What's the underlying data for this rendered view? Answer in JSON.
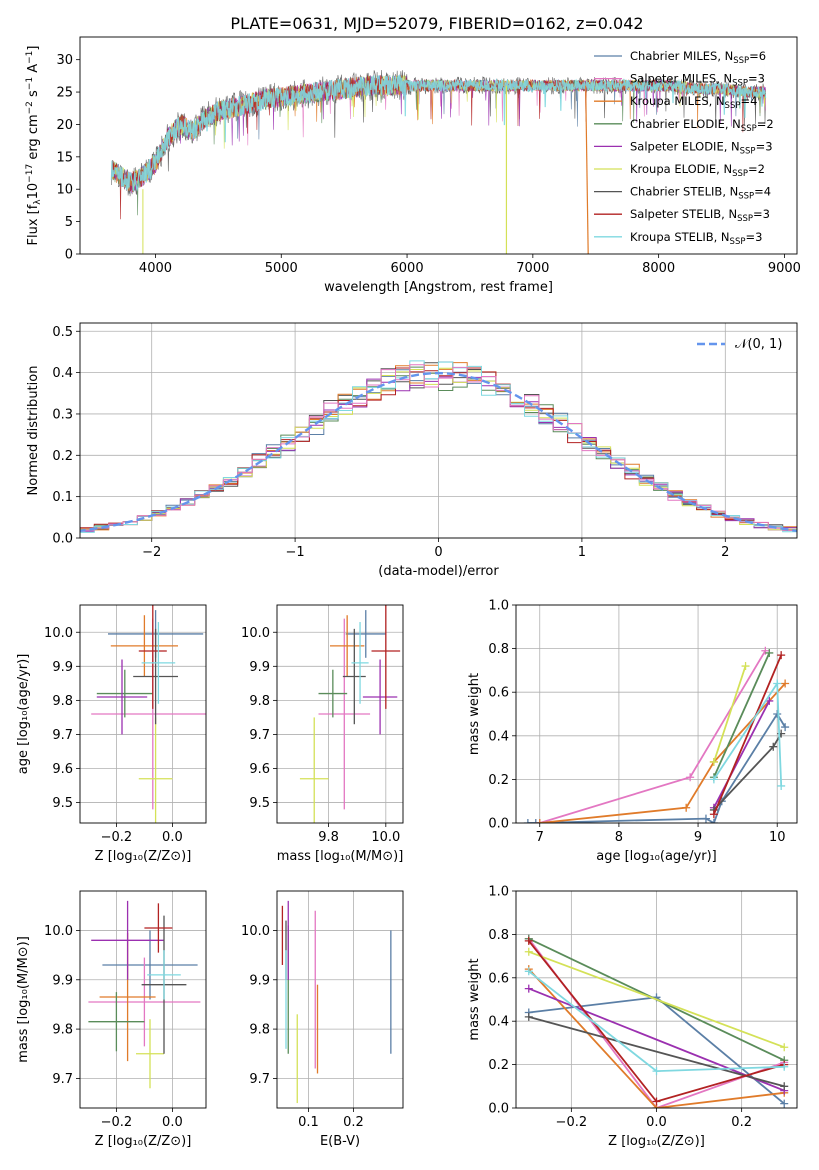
{
  "figure_title": "PLATE=0631, MJD=52079, FIBERID=0162, z=0.042",
  "colors": [
    "#5b7fa6",
    "#e377c2",
    "#e07b2a",
    "#5a8c5a",
    "#9b30b0",
    "#d4e157",
    "#555555",
    "#b22222",
    "#7fd8e0"
  ],
  "legend_entries": [
    {
      "name": "Chabrier MILES, N",
      "sub": "SSP",
      "tail": "=6",
      "color": "#5b7fa6"
    },
    {
      "name": "Salpeter MILES, N",
      "sub": "SSP",
      "tail": "=3",
      "color": "#e377c2"
    },
    {
      "name": "Kroupa MILES, N",
      "sub": "SSP",
      "tail": "=4",
      "color": "#e07b2a"
    },
    {
      "name": "Chabrier ELODIE, N",
      "sub": "SSP",
      "tail": "=2",
      "color": "#5a8c5a"
    },
    {
      "name": "Salpeter ELODIE, N",
      "sub": "SSP",
      "tail": "=3",
      "color": "#9b30b0"
    },
    {
      "name": "Kroupa ELODIE, N",
      "sub": "SSP",
      "tail": "=2",
      "color": "#d4e157"
    },
    {
      "name": "Chabrier STELIB, N",
      "sub": "SSP",
      "tail": "=4",
      "color": "#555555"
    },
    {
      "name": "Salpeter STELIB, N",
      "sub": "SSP",
      "tail": "=3",
      "color": "#b22222"
    },
    {
      "name": "Kroupa STELIB, N",
      "sub": "SSP",
      "tail": "=3",
      "color": "#7fd8e0"
    }
  ],
  "chart_data": [
    {
      "id": "spectrum",
      "type": "line",
      "xlabel": "wavelength [Angstrom, rest frame]",
      "ylabel": "Flux [f",
      "ylabel_parts": [
        "Flux [f",
        "λ",
        "10",
        "−17",
        " erg cm",
        "−2",
        " s",
        "−1",
        " A",
        "−1",
        "]"
      ],
      "xlim": [
        3400,
        9100
      ],
      "ylim": [
        0,
        33.5
      ],
      "xticks": [
        4000,
        5000,
        6000,
        7000,
        8000,
        9000
      ],
      "yticks": [
        0,
        5,
        10,
        15,
        20,
        25,
        30
      ],
      "continuum_x": [
        3650,
        3800,
        3900,
        4000,
        4100,
        4200,
        4300,
        4400,
        4500,
        4700,
        4900,
        5100,
        5300,
        5500,
        5700,
        5900,
        6100,
        6300,
        6500,
        6700,
        6900,
        7100,
        7300,
        7500,
        7700,
        7900,
        8100,
        8300,
        8500,
        8700,
        8850
      ],
      "continuum_y": [
        13,
        11,
        12,
        14,
        18,
        20,
        19,
        21,
        22,
        23,
        24,
        24.5,
        25,
        25.5,
        26,
        26,
        26,
        26,
        26,
        26,
        26,
        26,
        26,
        26,
        26,
        26,
        26,
        25.5,
        25.5,
        25,
        25
      ]
    },
    {
      "id": "residuals",
      "type": "line",
      "xlabel": "(data-model)/error",
      "ylabel": "Normed distribution",
      "xlim": [
        -2.5,
        2.5
      ],
      "ylim": [
        0,
        0.52
      ],
      "xticks": [
        -2,
        -1,
        0,
        1,
        2
      ],
      "yticks": [
        0.0,
        0.1,
        0.2,
        0.3,
        0.4,
        0.5
      ],
      "legend": "𝒩(0, 1)",
      "gaussian": {
        "mean": 0,
        "sigma": 1
      }
    },
    {
      "id": "age-vs-Z",
      "type": "scatter",
      "xlabel": "Z [log₁₀(Z/Z⊙)]",
      "ylabel": "age  [log₁₀(age/yr)]",
      "xlim": [
        -0.33,
        0.12
      ],
      "ylim": [
        9.44,
        10.08
      ],
      "xticks": [
        -0.2,
        0.0
      ],
      "yticks": [
        9.5,
        9.6,
        9.7,
        9.8,
        9.9,
        10.0
      ],
      "points": [
        {
          "x": -0.06,
          "y": 9.995,
          "xerr": 0.17,
          "yerr": 0.07,
          "c": 0
        },
        {
          "x": -0.07,
          "y": 9.76,
          "xerr": 0.22,
          "yerr": 0.28,
          "c": 1
        },
        {
          "x": -0.1,
          "y": 9.96,
          "xerr": 0.12,
          "yerr": 0.09,
          "c": 2
        },
        {
          "x": -0.17,
          "y": 9.82,
          "xerr": 0.1,
          "yerr": 0.07,
          "c": 3
        },
        {
          "x": -0.18,
          "y": 9.81,
          "xerr": 0.09,
          "yerr": 0.11,
          "c": 4
        },
        {
          "x": -0.06,
          "y": 9.57,
          "xerr": 0.06,
          "yerr": 0.18,
          "c": 5
        },
        {
          "x": -0.06,
          "y": 9.87,
          "xerr": 0.08,
          "yerr": 0.14,
          "c": 6
        },
        {
          "x": -0.07,
          "y": 9.945,
          "xerr": 0.05,
          "yerr": 0.17,
          "c": 7
        },
        {
          "x": -0.05,
          "y": 9.91,
          "xerr": 0.06,
          "yerr": 0.12,
          "c": 8
        }
      ]
    },
    {
      "id": "age-vs-mass",
      "type": "scatter",
      "xlabel": "mass [log₁₀(M/M⊙)]",
      "ylabel": "",
      "xlim": [
        9.62,
        10.06
      ],
      "ylim": [
        9.44,
        10.08
      ],
      "xticks": [
        9.8,
        10.0
      ],
      "yticks": [
        9.5,
        9.6,
        9.7,
        9.8,
        9.9,
        10.0
      ],
      "points": [
        {
          "x": 9.93,
          "y": 9.995,
          "xerr": 0.07,
          "yerr": 0.07,
          "c": 0
        },
        {
          "x": 9.855,
          "y": 9.76,
          "xerr": 0.09,
          "yerr": 0.28,
          "c": 1
        },
        {
          "x": 9.865,
          "y": 9.96,
          "xerr": 0.06,
          "yerr": 0.09,
          "c": 2
        },
        {
          "x": 9.815,
          "y": 9.82,
          "xerr": 0.05,
          "yerr": 0.07,
          "c": 3
        },
        {
          "x": 9.98,
          "y": 9.81,
          "xerr": 0.06,
          "yerr": 0.11,
          "c": 4
        },
        {
          "x": 9.75,
          "y": 9.57,
          "xerr": 0.05,
          "yerr": 0.18,
          "c": 5
        },
        {
          "x": 9.89,
          "y": 9.87,
          "xerr": 0.04,
          "yerr": 0.14,
          "c": 6
        },
        {
          "x": 10.0,
          "y": 9.945,
          "xerr": 0.05,
          "yerr": 0.17,
          "c": 7
        },
        {
          "x": 9.91,
          "y": 9.91,
          "xerr": 0.03,
          "yerr": 0.12,
          "c": 8
        }
      ]
    },
    {
      "id": "massweight-vs-age",
      "type": "line",
      "xlabel": "age  [log₁₀(age/yr)]",
      "ylabel": "mass weight",
      "xlim": [
        6.7,
        10.25
      ],
      "ylim": [
        0,
        1.0
      ],
      "xticks": [
        7,
        8,
        9,
        10
      ],
      "yticks": [
        0.0,
        0.2,
        0.4,
        0.6,
        0.8,
        1.0
      ],
      "series": [
        {
          "c": 0,
          "x": [
            6.85,
            6.95,
            9.1,
            9.2,
            9.3,
            10.0,
            10.1
          ],
          "y": [
            0.0,
            0.0,
            0.02,
            0.0,
            0.1,
            0.5,
            0.44
          ]
        },
        {
          "c": 1,
          "x": [
            7.0,
            8.9,
            9.85
          ],
          "y": [
            0.0,
            0.21,
            0.79
          ]
        },
        {
          "c": 2,
          "x": [
            7.0,
            8.85,
            9.2,
            10.1
          ],
          "y": [
            0.0,
            0.07,
            0.28,
            0.64
          ]
        },
        {
          "c": 3,
          "x": [
            9.2,
            9.9
          ],
          "y": [
            0.21,
            0.78
          ]
        },
        {
          "c": 4,
          "x": [
            9.2,
            9.9
          ],
          "y": [
            0.07,
            0.56
          ]
        },
        {
          "c": 5,
          "x": [
            9.2,
            9.6
          ],
          "y": [
            0.28,
            0.72
          ]
        },
        {
          "c": 6,
          "x": [
            9.2,
            9.95,
            10.05
          ],
          "y": [
            0.06,
            0.35,
            0.41
          ]
        },
        {
          "c": 7,
          "x": [
            9.2,
            10.05
          ],
          "y": [
            0.04,
            0.77
          ]
        },
        {
          "c": 8,
          "x": [
            9.2,
            10.0,
            10.05
          ],
          "y": [
            0.2,
            0.64,
            0.17
          ]
        }
      ]
    },
    {
      "id": "mass-vs-Z",
      "type": "scatter",
      "xlabel": "Z [log₁₀(Z/Z⊙)]",
      "ylabel": "mass [log₁₀(M/M⊙)]",
      "xlim": [
        -0.33,
        0.12
      ],
      "ylim": [
        9.64,
        10.08
      ],
      "xticks": [
        -0.2,
        0.0
      ],
      "yticks": [
        9.7,
        9.8,
        9.9,
        10.0
      ],
      "points": [
        {
          "x": -0.08,
          "y": 9.93,
          "xerr": 0.17,
          "yerr": 0.07,
          "c": 0
        },
        {
          "x": -0.1,
          "y": 9.855,
          "xerr": 0.2,
          "yerr": 0.09,
          "c": 1
        },
        {
          "x": -0.16,
          "y": 9.865,
          "xerr": 0.1,
          "yerr": 0.13,
          "c": 2
        },
        {
          "x": -0.2,
          "y": 9.815,
          "xerr": 0.1,
          "yerr": 0.06,
          "c": 3
        },
        {
          "x": -0.16,
          "y": 9.98,
          "xerr": 0.13,
          "yerr": 0.08,
          "c": 4
        },
        {
          "x": -0.08,
          "y": 9.75,
          "xerr": 0.05,
          "yerr": 0.07,
          "c": 5
        },
        {
          "x": -0.03,
          "y": 9.89,
          "xerr": 0.08,
          "yerr": 0.14,
          "c": 6
        },
        {
          "x": -0.05,
          "y": 10.005,
          "xerr": 0.05,
          "yerr": 0.05,
          "c": 7
        },
        {
          "x": -0.03,
          "y": 9.91,
          "xerr": 0.06,
          "yerr": 0.05,
          "c": 8
        }
      ]
    },
    {
      "id": "mass-vs-EBV",
      "type": "scatter",
      "xlabel": "E(B-V)",
      "ylabel": "",
      "xlim": [
        0.03,
        0.31
      ],
      "ylim": [
        9.64,
        10.08
      ],
      "xticks": [
        0.1,
        0.2
      ],
      "yticks": [
        9.7,
        9.8,
        9.9,
        10.0
      ],
      "points": [
        {
          "x": 0.283,
          "y": 9.875,
          "xerr": 0.0,
          "yerr": 0.125,
          "c": 0
        },
        {
          "x": 0.115,
          "y": 9.88,
          "xerr": 0.0,
          "yerr": 0.16,
          "c": 1
        },
        {
          "x": 0.12,
          "y": 9.8,
          "xerr": 0.0,
          "yerr": 0.09,
          "c": 2
        },
        {
          "x": 0.055,
          "y": 9.88,
          "xerr": 0.0,
          "yerr": 0.13,
          "c": 3
        },
        {
          "x": 0.055,
          "y": 9.98,
          "xerr": 0.0,
          "yerr": 0.08,
          "c": 4
        },
        {
          "x": 0.075,
          "y": 9.74,
          "xerr": 0.0,
          "yerr": 0.09,
          "c": 5
        },
        {
          "x": 0.05,
          "y": 9.96,
          "xerr": 0.0,
          "yerr": 0.06,
          "c": 6
        },
        {
          "x": 0.042,
          "y": 9.99,
          "xerr": 0.0,
          "yerr": 0.06,
          "c": 7
        },
        {
          "x": 0.05,
          "y": 9.86,
          "xerr": 0.0,
          "yerr": 0.1,
          "c": 8
        }
      ]
    },
    {
      "id": "massweight-vs-Z",
      "type": "line",
      "xlabel": "Z [log₁₀(Z/Z⊙)]",
      "ylabel": "mass weight",
      "xlim": [
        -0.33,
        0.33
      ],
      "ylim": [
        0,
        1.0
      ],
      "xticks": [
        -0.2,
        0.0,
        0.2
      ],
      "yticks": [
        0.0,
        0.2,
        0.4,
        0.6,
        0.8,
        1.0
      ],
      "series": [
        {
          "c": 0,
          "x": [
            -0.3,
            0.0,
            0.3
          ],
          "y": [
            0.44,
            0.51,
            0.02
          ]
        },
        {
          "c": 1,
          "x": [
            -0.3,
            0.0,
            0.3
          ],
          "y": [
            0.78,
            0.0,
            0.21
          ]
        },
        {
          "c": 2,
          "x": [
            -0.3,
            0.0,
            0.3
          ],
          "y": [
            0.64,
            0.0,
            0.07
          ]
        },
        {
          "c": 3,
          "x": [
            -0.3,
            0.3
          ],
          "y": [
            0.78,
            0.22
          ]
        },
        {
          "c": 4,
          "x": [
            -0.3,
            0.3
          ],
          "y": [
            0.55,
            0.08
          ]
        },
        {
          "c": 5,
          "x": [
            -0.3,
            0.3
          ],
          "y": [
            0.72,
            0.28
          ]
        },
        {
          "c": 6,
          "x": [
            -0.3,
            0.3
          ],
          "y": [
            0.42,
            0.1
          ]
        },
        {
          "c": 7,
          "x": [
            -0.3,
            0.0,
            0.3
          ],
          "y": [
            0.77,
            0.03,
            0.2
          ]
        },
        {
          "c": 8,
          "x": [
            -0.3,
            0.0,
            0.3
          ],
          "y": [
            0.63,
            0.17,
            0.19
          ]
        }
      ]
    }
  ]
}
